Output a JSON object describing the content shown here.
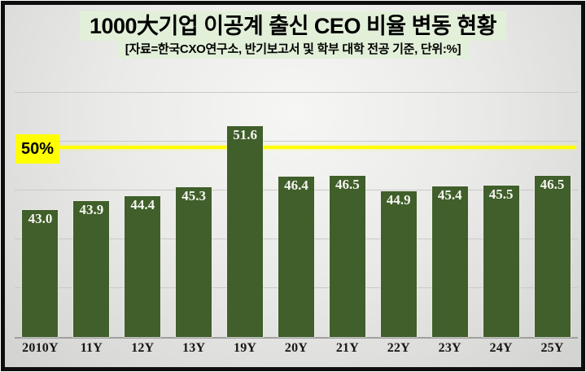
{
  "header": {
    "title": "1000大기업 이공계 출신 CEO 비율 변동 현황",
    "subtitle": "[자료=한국CXO연구소,  반기보고서 및 학부 대학 전공 기준, 단위:%]"
  },
  "colors": {
    "bar": "#405f2b",
    "title_highlight": "#e2f0d9",
    "reference_line": "#ffff00",
    "reference_label_bg": "#ffff00",
    "gridline": "#c9c9c7",
    "axis": "#9f9f9d",
    "bar_value_text": "#f6f6f0",
    "background": "#e9e9e7",
    "frame_border": "#0e0e0e"
  },
  "chart_data": {
    "type": "bar",
    "title": "1000大기업 이공계 출신 CEO 비율 변동 현황",
    "subtitle": "[자료=한국CXO연구소,  반기보고서 및 학부 대학 전공 기준, 단위:%]",
    "categories": [
      "2010Y",
      "11Y",
      "12Y",
      "13Y",
      "19Y",
      "20Y",
      "21Y",
      "22Y",
      "23Y",
      "24Y",
      "25Y"
    ],
    "values": [
      43.0,
      43.9,
      44.4,
      45.3,
      51.6,
      46.4,
      46.5,
      44.9,
      45.4,
      45.5,
      46.5
    ],
    "value_labels": [
      "43.0",
      "43.9",
      "44.4",
      "45.3",
      "51.6",
      "46.4",
      "46.5",
      "44.9",
      "45.4",
      "45.5",
      "46.5"
    ],
    "unit": "%",
    "xlabel": "",
    "ylabel": "",
    "ylim": [
      30,
      56.25
    ],
    "yticks": [
      35,
      40,
      45,
      50,
      55
    ],
    "grid": "horizontal",
    "legend": "none",
    "reference_line": {
      "value": 50,
      "label": "50%"
    }
  }
}
